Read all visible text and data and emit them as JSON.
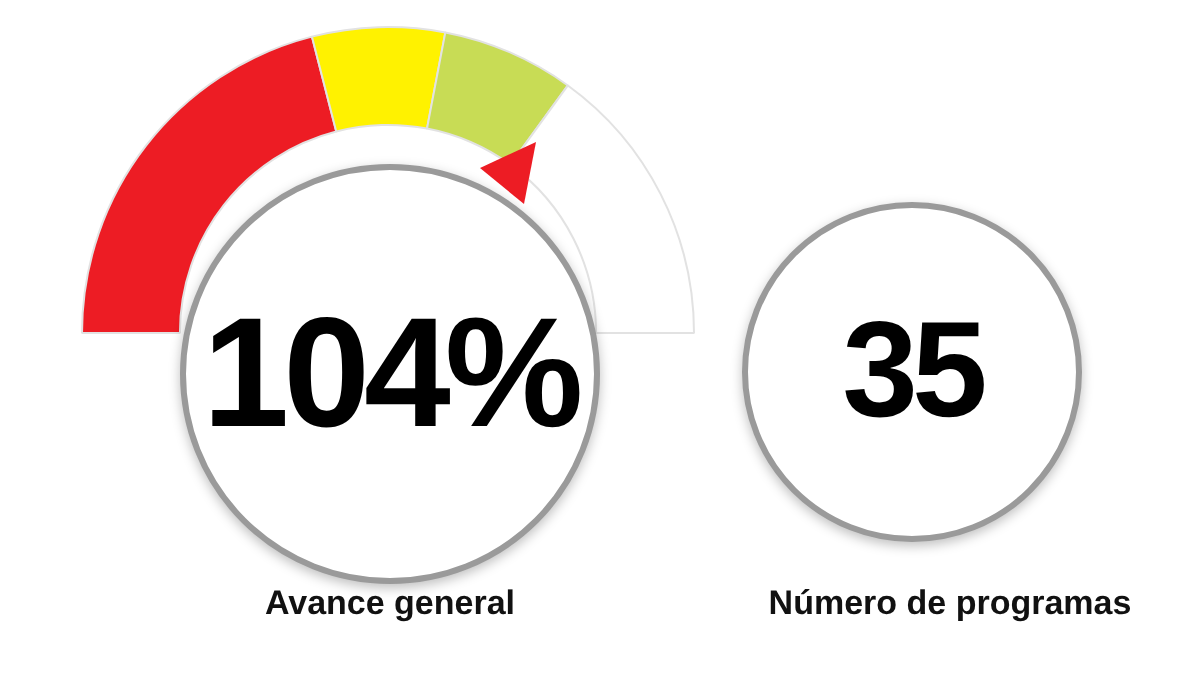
{
  "chart_data": [
    {
      "type": "donut",
      "title": "Avance general",
      "categories": [
        null,
        null,
        null,
        null
      ],
      "values": [
        42,
        14,
        14,
        30
      ],
      "colors": [
        "#ed1c24",
        "#fff200",
        "#c8dc55",
        "#ffffff"
      ],
      "annotations": [
        "104%"
      ]
    },
    {
      "type": "other",
      "title": "Número de programas",
      "annotations": [
        "35"
      ]
    }
  ]
}
